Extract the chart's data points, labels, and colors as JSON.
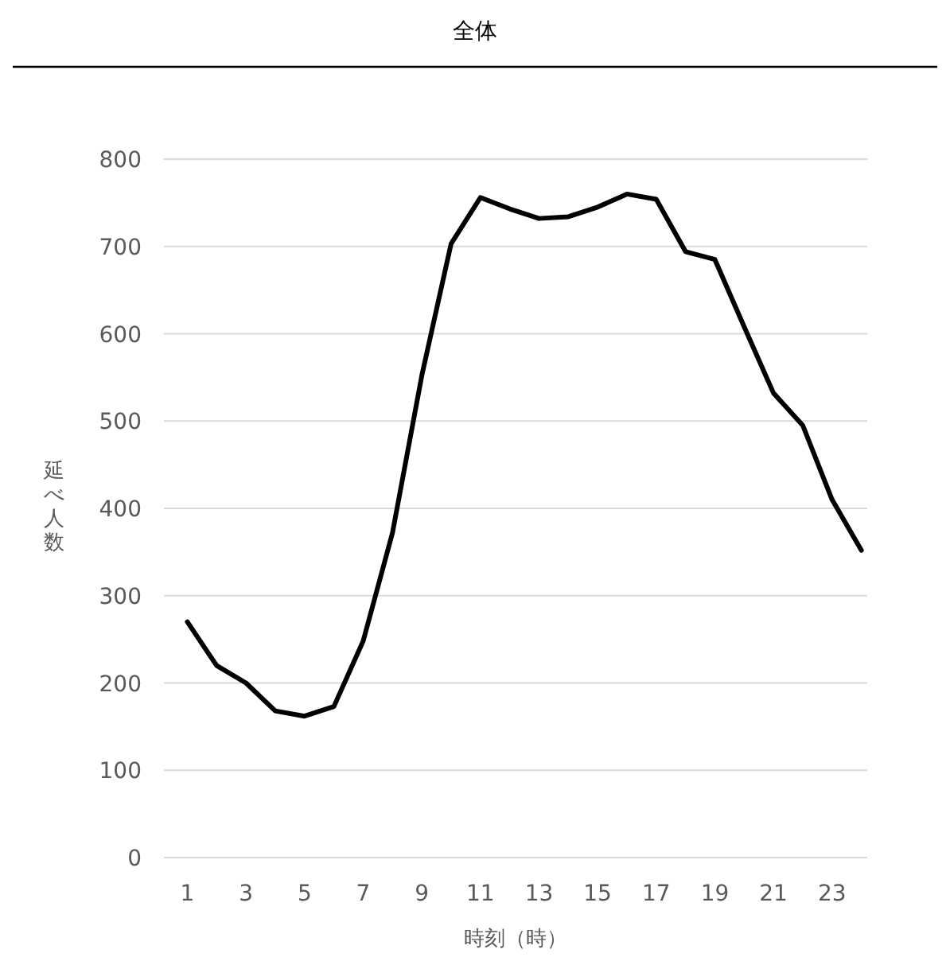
{
  "chart_data": {
    "type": "line",
    "title": "全体",
    "xlabel": "時刻（時）",
    "ylabel": "延べ人数",
    "x": [
      1,
      2,
      3,
      4,
      5,
      6,
      7,
      8,
      9,
      10,
      11,
      12,
      13,
      14,
      15,
      16,
      17,
      18,
      19,
      20,
      21,
      22,
      23,
      24
    ],
    "series": [
      {
        "color": "#000000",
        "values": [
          270,
          220,
          200,
          168,
          162,
          173,
          248,
          372,
          552,
          703,
          756,
          743,
          732,
          734,
          745,
          760,
          754,
          694,
          685,
          608,
          532,
          495,
          410,
          352
        ]
      }
    ],
    "xlim": [
      0.2,
      24.2
    ],
    "xticks": [
      1,
      3,
      5,
      7,
      9,
      11,
      13,
      15,
      17,
      19,
      21,
      23
    ],
    "ylim": [
      0,
      800
    ],
    "yticks": [
      0,
      100,
      200,
      300,
      400,
      500,
      600,
      700,
      800
    ],
    "grid": "y"
  }
}
